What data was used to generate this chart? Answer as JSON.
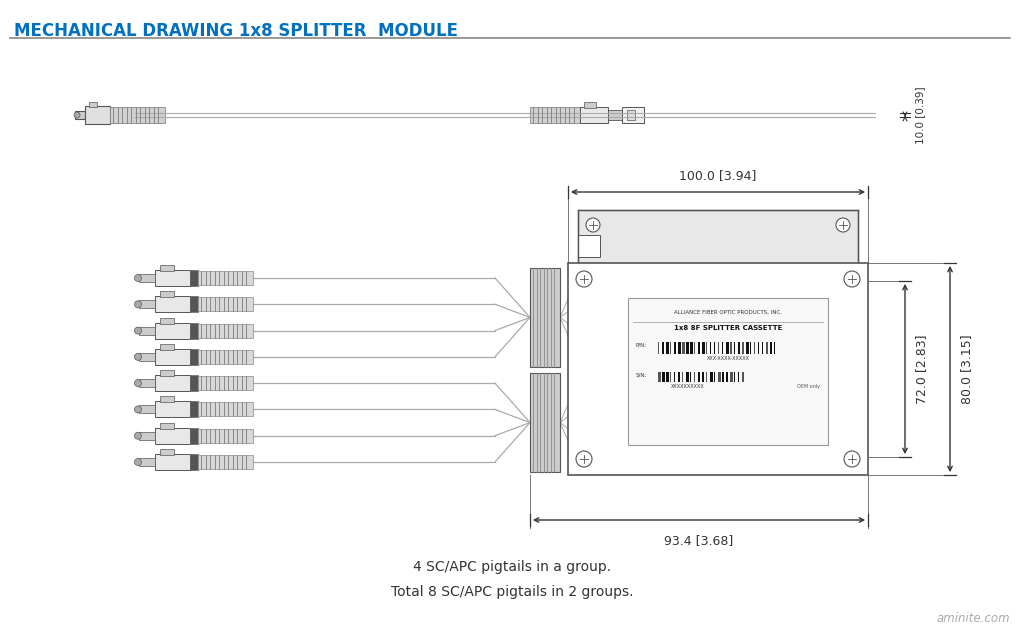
{
  "title": "MECHANICAL DRAWING 1x8 SPLITTER  MODULE",
  "title_color": "#0070C0",
  "bg_color": "#ffffff",
  "line_color": "#555555",
  "dim_color": "#333333",
  "dim_text_color": "#222222",
  "annotation1": "4 SC/APC pigtails in a group.",
  "annotation2": "Total 8 SC/APC pigtails in 2 groups.",
  "watermark": "aminite.com",
  "dim_top_height": "10.0 [0.39]",
  "dim_width_top": "100.0 [3.94]",
  "dim_height_inner": "72.0 [2.83]",
  "dim_height_outer": "80.0 [3.15]",
  "dim_width_bottom": "93.4 [3.68]"
}
